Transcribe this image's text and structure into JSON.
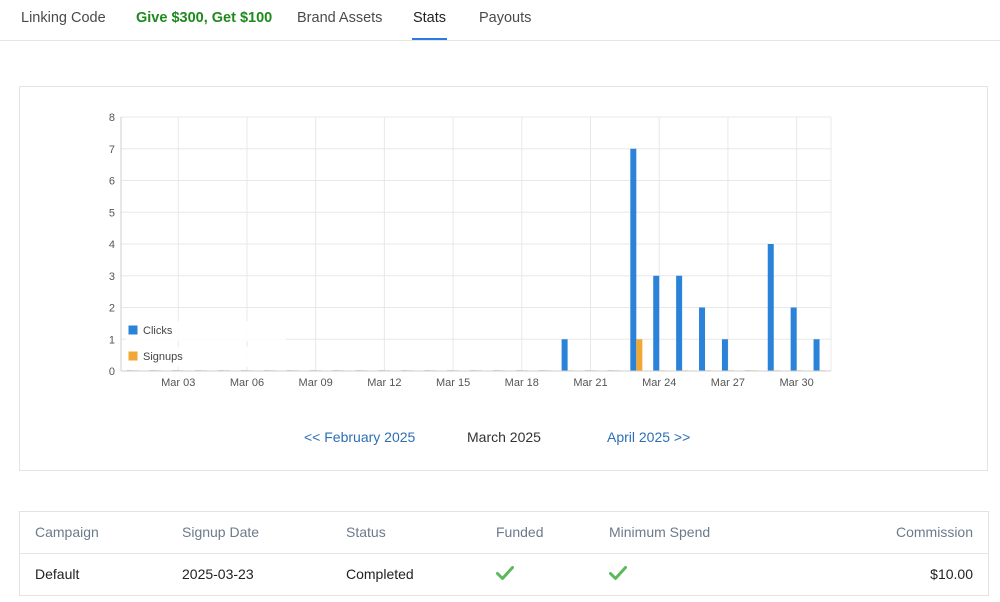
{
  "tabs": [
    {
      "label": "Linking Code"
    },
    {
      "label": "Give $300, Get $100"
    },
    {
      "label": "Brand Assets"
    },
    {
      "label": "Stats"
    },
    {
      "label": "Payouts"
    }
  ],
  "colors": {
    "accent": "#2c7be5",
    "promo": "#1e8a1e",
    "clicks": "#2b82d9",
    "signups": "#f0a733",
    "check": "#5cb85c"
  },
  "chart_data": {
    "type": "bar",
    "x": [
      "Mar 01",
      "Mar 02",
      "Mar 03",
      "Mar 04",
      "Mar 05",
      "Mar 06",
      "Mar 07",
      "Mar 08",
      "Mar 09",
      "Mar 10",
      "Mar 11",
      "Mar 12",
      "Mar 13",
      "Mar 14",
      "Mar 15",
      "Mar 16",
      "Mar 17",
      "Mar 18",
      "Mar 19",
      "Mar 20",
      "Mar 21",
      "Mar 22",
      "Mar 23",
      "Mar 24",
      "Mar 25",
      "Mar 26",
      "Mar 27",
      "Mar 28",
      "Mar 29",
      "Mar 30",
      "Mar 31"
    ],
    "x_tick_labels": [
      "Mar 03",
      "Mar 06",
      "Mar 09",
      "Mar 12",
      "Mar 15",
      "Mar 18",
      "Mar 21",
      "Mar 24",
      "Mar 27",
      "Mar 30"
    ],
    "y_ticks": [
      "0",
      "1",
      "2",
      "3",
      "4",
      "5",
      "6",
      "7",
      "8"
    ],
    "ylim": [
      0,
      8
    ],
    "series": [
      {
        "name": "Clicks",
        "color": "#2b82d9",
        "values": [
          0,
          0,
          0,
          0,
          0,
          0,
          0,
          0,
          0,
          0,
          0,
          0,
          0,
          0,
          0,
          0,
          0,
          0,
          0,
          1,
          0,
          0,
          7,
          3,
          3,
          2,
          1,
          0,
          4,
          2,
          1
        ]
      },
      {
        "name": "Signups",
        "color": "#f0a733",
        "values": [
          0,
          0,
          0,
          0,
          0,
          0,
          0,
          0,
          0,
          0,
          0,
          0,
          0,
          0,
          0,
          0,
          0,
          0,
          0,
          0,
          0,
          0,
          1,
          0,
          0,
          0,
          0,
          0,
          0,
          0,
          0
        ]
      }
    ],
    "legend_position": "bottom-left",
    "grid": true
  },
  "month_nav": {
    "prev": "<< February 2025",
    "current": "March 2025",
    "next": "April 2025 >>"
  },
  "table": {
    "headers": {
      "campaign": "Campaign",
      "signup_date": "Signup Date",
      "status": "Status",
      "funded": "Funded",
      "minimum_spend": "Minimum Spend",
      "commission": "Commission"
    },
    "rows": [
      {
        "campaign": "Default",
        "signup_date": "2025-03-23",
        "status": "Completed",
        "funded": "check-icon",
        "minimum_spend": "check-icon",
        "commission": "$10.00"
      }
    ]
  }
}
